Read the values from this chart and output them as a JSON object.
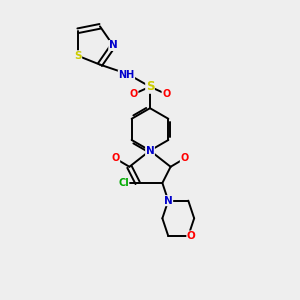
{
  "bg_color": "#eeeeee",
  "bond_color": "#000000",
  "atom_colors": {
    "N": "#0000cc",
    "O": "#ff0000",
    "S": "#cccc00",
    "Cl": "#00aa00",
    "C": "#000000",
    "H": "#5599aa"
  },
  "font_size": 7.0,
  "lw": 1.4
}
